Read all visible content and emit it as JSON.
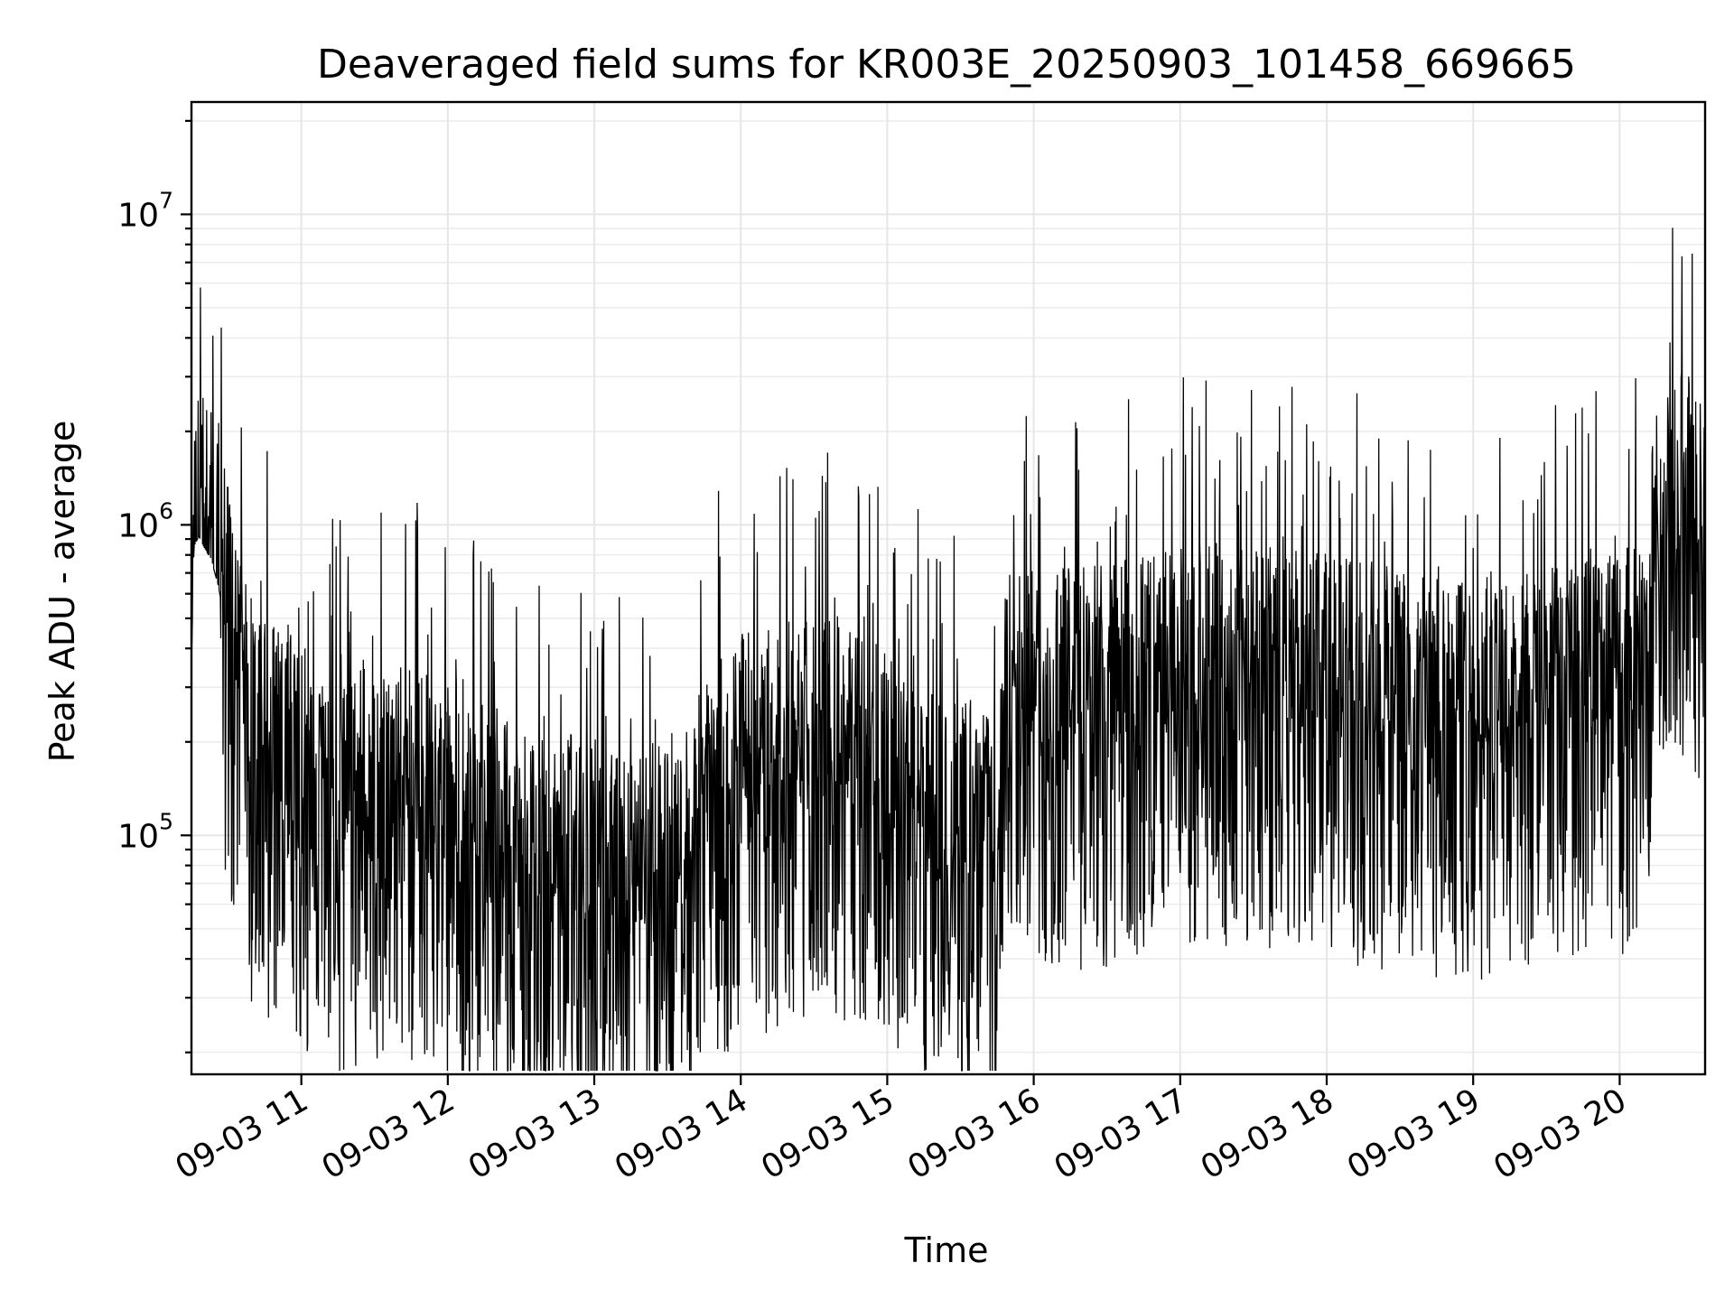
{
  "chart_data": {
    "type": "line",
    "title": "Deaveraged field sums for KR003E_20250903_101458_669665",
    "xlabel": "Time",
    "ylabel": "Peak ADU - average",
    "y_scale": "log",
    "ylim": [
      17000,
      23000000
    ],
    "xlim": [
      "2025-09-03 10:15",
      "2025-09-03 20:35"
    ],
    "x_ticks": [
      "2025-09-03 11:00",
      "2025-09-03 12:00",
      "2025-09-03 13:00",
      "2025-09-03 14:00",
      "2025-09-03 15:00",
      "2025-09-03 16:00",
      "2025-09-03 17:00",
      "2025-09-03 18:00",
      "2025-09-03 19:00",
      "2025-09-03 20:00"
    ],
    "x_tick_labels": [
      "09-03 11",
      "09-03 12",
      "09-03 13",
      "09-03 14",
      "09-03 15",
      "09-03 16",
      "09-03 17",
      "09-03 18",
      "09-03 19",
      "09-03 20"
    ],
    "y_ticks": [
      {
        "value": 100000,
        "base": "10",
        "exponent": "5"
      },
      {
        "value": 1000000,
        "base": "10",
        "exponent": "6"
      },
      {
        "value": 10000000,
        "base": "10",
        "exponent": "7"
      }
    ],
    "grid": true,
    "line_color": "#000000",
    "series": [
      {
        "points": [
          [
            "2025-09-03 10:15",
            500000
          ],
          [
            "2025-09-03 10:16",
            1200000
          ],
          [
            "2025-09-03 10:18",
            1300000
          ],
          [
            "2025-09-03 10:20",
            1200000
          ],
          [
            "2025-09-03 10:23",
            1100000
          ],
          [
            "2025-09-03 10:26",
            900000
          ],
          [
            "2025-09-03 10:30",
            600000
          ],
          [
            "2025-09-03 10:35",
            350000
          ],
          [
            "2025-09-03 10:40",
            250000
          ],
          [
            "2025-09-03 10:45",
            220000
          ],
          [
            "2025-09-03 10:50",
            240000
          ],
          [
            "2025-09-03 11:00",
            180000
          ],
          [
            "2025-09-03 11:15",
            150000
          ],
          [
            "2025-09-03 11:30",
            170000
          ],
          [
            "2025-09-03 11:45",
            150000
          ],
          [
            "2025-09-03 12:00",
            140000
          ],
          [
            "2025-09-03 12:15",
            120000
          ],
          [
            "2025-09-03 12:30",
            100000
          ],
          [
            "2025-09-03 12:45",
            95000
          ],
          [
            "2025-09-03 13:00",
            90000
          ],
          [
            "2025-09-03 13:15",
            75000
          ],
          [
            "2025-09-03 13:30",
            90000
          ],
          [
            "2025-09-03 13:45",
            160000
          ],
          [
            "2025-09-03 14:00",
            190000
          ],
          [
            "2025-09-03 14:15",
            210000
          ],
          [
            "2025-09-03 14:30",
            230000
          ],
          [
            "2025-09-03 14:45",
            220000
          ],
          [
            "2025-09-03 15:00",
            170000
          ],
          [
            "2025-09-03 15:15",
            140000
          ],
          [
            "2025-09-03 15:30",
            120000
          ],
          [
            "2025-09-03 15:45",
            110000
          ],
          [
            "2025-09-03 15:50",
            450000
          ],
          [
            "2025-09-03 16:00",
            300000
          ],
          [
            "2025-09-03 16:15",
            320000
          ],
          [
            "2025-09-03 16:30",
            330000
          ],
          [
            "2025-09-03 16:45",
            350000
          ],
          [
            "2025-09-03 17:00",
            380000
          ],
          [
            "2025-09-03 17:15",
            390000
          ],
          [
            "2025-09-03 17:30",
            370000
          ],
          [
            "2025-09-03 17:45",
            380000
          ],
          [
            "2025-09-03 18:00",
            360000
          ],
          [
            "2025-09-03 18:15",
            330000
          ],
          [
            "2025-09-03 18:30",
            320000
          ],
          [
            "2025-09-03 18:45",
            300000
          ],
          [
            "2025-09-03 19:00",
            300000
          ],
          [
            "2025-09-03 19:15",
            300000
          ],
          [
            "2025-09-03 19:30",
            320000
          ],
          [
            "2025-09-03 19:45",
            340000
          ],
          [
            "2025-09-03 20:00",
            360000
          ],
          [
            "2025-09-03 20:10",
            400000
          ],
          [
            "2025-09-03 20:15",
            1100000
          ],
          [
            "2025-09-03 20:25",
            1400000
          ],
          [
            "2025-09-03 20:33",
            1300000
          ],
          [
            "2025-09-03 20:35",
            700000
          ]
        ]
      }
    ]
  }
}
